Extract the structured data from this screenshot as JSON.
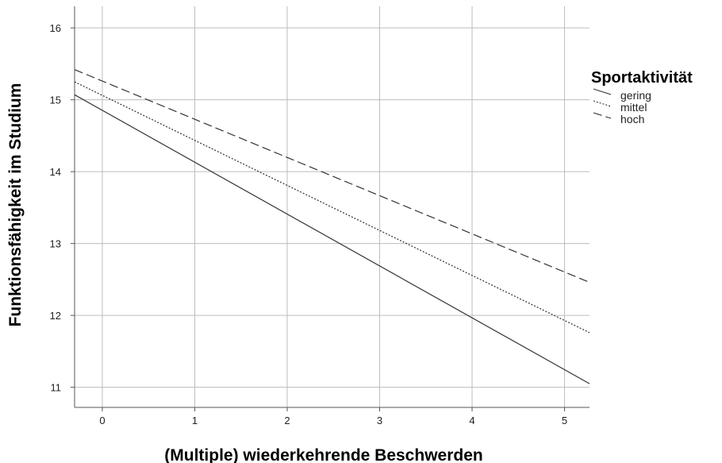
{
  "chart_data": {
    "type": "line",
    "xlabel": "(Multiple) wiederkehrende Beschwerden",
    "ylabel": "Funktionsfähigkeit im Studium",
    "xlim": [
      -0.3,
      5.27
    ],
    "ylim": [
      10.72,
      16.3
    ],
    "x_ticks": [
      0,
      1,
      2,
      3,
      4,
      5
    ],
    "y_ticks": [
      11,
      12,
      13,
      14,
      15,
      16
    ],
    "grid": true,
    "legend": {
      "title": "Sportaktivität",
      "position": "right"
    },
    "series": [
      {
        "name": "gering",
        "dash": "solid",
        "color": "#333333",
        "x": [
          -0.3,
          5.27
        ],
        "y": [
          15.07,
          11.05
        ]
      },
      {
        "name": "mittel",
        "dash": "dotted",
        "color": "#333333",
        "x": [
          -0.3,
          5.27
        ],
        "y": [
          15.25,
          11.76
        ]
      },
      {
        "name": "hoch",
        "dash": "dashed",
        "color": "#333333",
        "x": [
          -0.3,
          5.27
        ],
        "y": [
          15.42,
          12.46
        ]
      }
    ]
  }
}
